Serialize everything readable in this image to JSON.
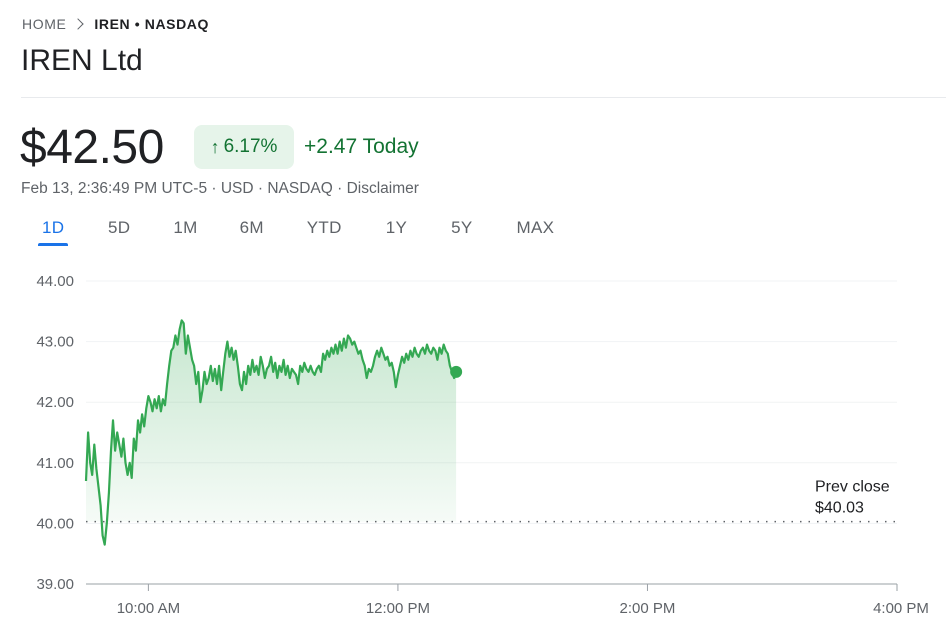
{
  "breadcrumb": {
    "home": "HOME",
    "ticker": "IREN • NASDAQ"
  },
  "title": "IREN Ltd",
  "price": "$42.50",
  "change_percent": "6.17%",
  "change_today": "+2.47 Today",
  "meta": "Feb 13, 2:36:49 PM UTC-5 · USD · NASDAQ · Disclaimer",
  "tabs": [
    "1D",
    "5D",
    "1M",
    "6M",
    "YTD",
    "1Y",
    "5Y",
    "MAX"
  ],
  "active_tab": "1D",
  "colors": {
    "line": "#34a853",
    "positive_text": "#137333",
    "pill_bg": "#e6f4ea",
    "accent": "#1a73e8"
  },
  "chart_data": {
    "type": "area",
    "yticks": [
      "44.00",
      "43.00",
      "42.00",
      "41.00",
      "40.00",
      "39.00"
    ],
    "ylim": [
      39,
      44
    ],
    "xticks": [
      {
        "label": "10:00 AM",
        "minutes": 600
      },
      {
        "label": "12:00 PM",
        "minutes": 720
      },
      {
        "label": "2:00 PM",
        "minutes": 840
      },
      {
        "label": "4:00 PM",
        "minutes": 960
      }
    ],
    "prev_close": {
      "label1": "Prev close",
      "label2": "$40.03",
      "value": 40.03
    },
    "grid": true,
    "series": [
      {
        "values": [
          [
            570,
            40.7
          ],
          [
            571,
            41.5
          ],
          [
            572,
            41.0
          ],
          [
            573,
            40.8
          ],
          [
            574,
            41.3
          ],
          [
            575,
            40.9
          ],
          [
            576,
            40.6
          ],
          [
            577,
            40.3
          ],
          [
            578,
            39.8
          ],
          [
            579,
            39.65
          ],
          [
            580,
            40.0
          ],
          [
            581,
            40.5
          ],
          [
            582,
            41.2
          ],
          [
            583,
            41.7
          ],
          [
            584,
            41.2
          ],
          [
            585,
            41.5
          ],
          [
            586,
            41.3
          ],
          [
            587,
            41.1
          ],
          [
            588,
            41.4
          ],
          [
            589,
            41.0
          ],
          [
            590,
            40.8
          ],
          [
            591,
            41.0
          ],
          [
            592,
            40.75
          ],
          [
            593,
            41.4
          ],
          [
            594,
            41.2
          ],
          [
            595,
            41.7
          ],
          [
            596,
            41.5
          ],
          [
            597,
            41.8
          ],
          [
            598,
            41.6
          ],
          [
            599,
            41.9
          ],
          [
            600,
            42.1
          ],
          [
            601,
            42.0
          ],
          [
            602,
            41.85
          ],
          [
            603,
            42.05
          ],
          [
            604,
            41.9
          ],
          [
            605,
            42.1
          ],
          [
            606,
            41.85
          ],
          [
            607,
            42.05
          ],
          [
            608,
            41.95
          ],
          [
            609,
            42.3
          ],
          [
            610,
            42.6
          ],
          [
            611,
            42.85
          ],
          [
            612,
            42.9
          ],
          [
            613,
            43.1
          ],
          [
            614,
            42.95
          ],
          [
            615,
            43.2
          ],
          [
            616,
            43.35
          ],
          [
            617,
            43.3
          ],
          [
            618,
            42.8
          ],
          [
            619,
            43.1
          ],
          [
            620,
            42.9
          ],
          [
            621,
            42.7
          ],
          [
            622,
            42.6
          ],
          [
            623,
            42.3
          ],
          [
            624,
            42.5
          ],
          [
            625,
            42.0
          ],
          [
            626,
            42.2
          ],
          [
            627,
            42.5
          ],
          [
            628,
            42.3
          ],
          [
            629,
            42.4
          ],
          [
            630,
            42.6
          ],
          [
            631,
            42.35
          ],
          [
            632,
            42.55
          ],
          [
            633,
            42.3
          ],
          [
            634,
            42.6
          ],
          [
            635,
            42.2
          ],
          [
            636,
            42.5
          ],
          [
            637,
            42.8
          ],
          [
            638,
            43.0
          ],
          [
            639,
            42.75
          ],
          [
            640,
            42.9
          ],
          [
            641,
            42.7
          ],
          [
            642,
            42.85
          ],
          [
            643,
            42.6
          ],
          [
            644,
            42.3
          ],
          [
            645,
            42.2
          ],
          [
            646,
            42.5
          ],
          [
            647,
            42.3
          ],
          [
            648,
            42.6
          ],
          [
            649,
            42.45
          ],
          [
            650,
            42.7
          ],
          [
            651,
            42.5
          ],
          [
            652,
            42.6
          ],
          [
            653,
            42.45
          ],
          [
            654,
            42.75
          ],
          [
            655,
            42.6
          ],
          [
            656,
            42.4
          ],
          [
            657,
            42.55
          ],
          [
            658,
            42.6
          ],
          [
            659,
            42.75
          ],
          [
            660,
            42.5
          ],
          [
            661,
            42.65
          ],
          [
            662,
            42.4
          ],
          [
            663,
            42.6
          ],
          [
            664,
            42.5
          ],
          [
            665,
            42.7
          ],
          [
            666,
            42.45
          ],
          [
            667,
            42.6
          ],
          [
            668,
            42.4
          ],
          [
            669,
            42.55
          ],
          [
            670,
            42.5
          ],
          [
            671,
            42.45
          ],
          [
            672,
            42.3
          ],
          [
            673,
            42.6
          ],
          [
            674,
            42.5
          ],
          [
            675,
            42.65
          ],
          [
            676,
            42.55
          ],
          [
            677,
            42.5
          ],
          [
            678,
            42.6
          ],
          [
            679,
            42.5
          ],
          [
            680,
            42.45
          ],
          [
            681,
            42.55
          ],
          [
            682,
            42.6
          ],
          [
            683,
            42.5
          ],
          [
            684,
            42.8
          ],
          [
            685,
            42.7
          ],
          [
            686,
            42.85
          ],
          [
            687,
            42.75
          ],
          [
            688,
            42.9
          ],
          [
            689,
            42.8
          ],
          [
            690,
            42.95
          ],
          [
            691,
            42.8
          ],
          [
            692,
            43.0
          ],
          [
            693,
            42.85
          ],
          [
            694,
            43.05
          ],
          [
            695,
            42.9
          ],
          [
            696,
            43.1
          ],
          [
            697,
            43.05
          ],
          [
            698,
            42.95
          ],
          [
            699,
            43.0
          ],
          [
            700,
            42.9
          ],
          [
            701,
            42.8
          ],
          [
            702,
            42.85
          ],
          [
            703,
            42.7
          ],
          [
            704,
            42.6
          ],
          [
            705,
            42.4
          ],
          [
            706,
            42.55
          ],
          [
            707,
            42.5
          ],
          [
            708,
            42.6
          ],
          [
            709,
            42.75
          ],
          [
            710,
            42.85
          ],
          [
            711,
            42.75
          ],
          [
            712,
            42.9
          ],
          [
            713,
            42.8
          ],
          [
            714,
            42.7
          ],
          [
            715,
            42.75
          ],
          [
            716,
            42.6
          ],
          [
            717,
            42.65
          ],
          [
            718,
            42.5
          ],
          [
            719,
            42.25
          ],
          [
            720,
            42.45
          ],
          [
            721,
            42.6
          ],
          [
            722,
            42.75
          ],
          [
            723,
            42.65
          ],
          [
            724,
            42.8
          ],
          [
            725,
            42.7
          ],
          [
            726,
            42.85
          ],
          [
            727,
            42.75
          ],
          [
            728,
            42.9
          ],
          [
            729,
            42.8
          ],
          [
            730,
            42.75
          ],
          [
            731,
            42.85
          ],
          [
            732,
            42.9
          ],
          [
            733,
            42.8
          ],
          [
            734,
            42.95
          ],
          [
            735,
            42.85
          ],
          [
            736,
            42.8
          ],
          [
            737,
            42.9
          ],
          [
            738,
            42.85
          ],
          [
            739,
            42.7
          ],
          [
            740,
            42.9
          ],
          [
            741,
            42.8
          ],
          [
            742,
            42.95
          ],
          [
            743,
            42.85
          ],
          [
            744,
            42.8
          ],
          [
            745,
            42.6
          ],
          [
            746,
            42.5
          ],
          [
            747,
            42.4
          ],
          [
            748,
            42.5
          ]
        ]
      }
    ],
    "last_point": {
      "minutes": 748,
      "value": 42.5
    }
  }
}
